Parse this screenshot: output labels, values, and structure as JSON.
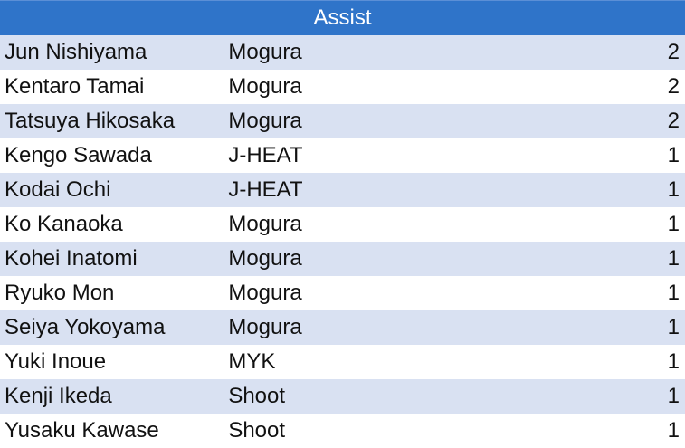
{
  "table": {
    "title": "Assist",
    "rows": [
      {
        "name": "Jun Nishiyama",
        "team": "Mogura",
        "count": "2"
      },
      {
        "name": "Kentaro Tamai",
        "team": "Mogura",
        "count": "2"
      },
      {
        "name": "Tatsuya Hikosaka",
        "team": "Mogura",
        "count": "2"
      },
      {
        "name": "Kengo Sawada",
        "team": "J-HEAT",
        "count": "1"
      },
      {
        "name": "Kodai Ochi",
        "team": "J-HEAT",
        "count": "1"
      },
      {
        "name": "Ko Kanaoka",
        "team": "Mogura",
        "count": "1"
      },
      {
        "name": "Kohei Inatomi",
        "team": "Mogura",
        "count": "1"
      },
      {
        "name": "Ryuko Mon",
        "team": "Mogura",
        "count": "1"
      },
      {
        "name": "Seiya Yokoyama",
        "team": "Mogura",
        "count": "1"
      },
      {
        "name": "Yuki Inoue",
        "team": "MYK",
        "count": "1"
      },
      {
        "name": "Kenji Ikeda",
        "team": "Shoot",
        "count": "1"
      },
      {
        "name": "Yusaku Kawase",
        "team": "Shoot",
        "count": "1"
      }
    ]
  },
  "colors": {
    "header_background": "#2f74c9",
    "header_text": "#ffffff",
    "band_row": "#d9e1f2",
    "plain_row": "#ffffff"
  }
}
